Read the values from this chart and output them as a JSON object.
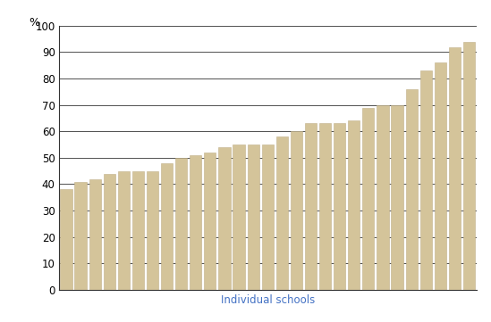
{
  "values": [
    38,
    41,
    42,
    44,
    45,
    45,
    45,
    48,
    50,
    51,
    52,
    54,
    55,
    55,
    55,
    58,
    60,
    63,
    63,
    63,
    64,
    69,
    70,
    70,
    76,
    83,
    86,
    92,
    94
  ],
  "bar_color": "#d4c49a",
  "bar_edge_color": "#c0b088",
  "ylabel": "%",
  "xlabel": "Individual schools",
  "xlabel_color": "#4472c4",
  "ylim": [
    0,
    100
  ],
  "yticks": [
    0,
    10,
    20,
    30,
    40,
    50,
    60,
    70,
    80,
    90,
    100
  ],
  "grid_color": "#333333",
  "background_color": "#ffffff",
  "bar_width": 0.82
}
